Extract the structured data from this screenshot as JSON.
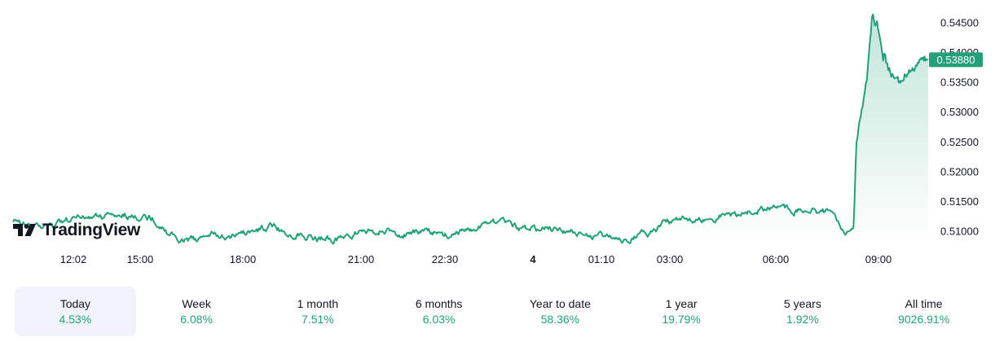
{
  "brand": {
    "name": "TradingView",
    "icon": "tradingview-logo-icon"
  },
  "colors": {
    "line": "#22a079",
    "fill_top": "#22a079",
    "last_price_label_bg": "#22a079",
    "positive": "#22a079",
    "active_tab_bg": "#f0f3fa"
  },
  "chart_data": {
    "type": "area",
    "x_tick_labels": [
      "12:02",
      "15:00",
      "18:00",
      "21:00",
      "22:30",
      "4",
      "01:10",
      "03:00",
      "06:00",
      "09:00"
    ],
    "y_tick_labels": [
      "0.54500",
      "0.54000",
      "0.53500",
      "0.53000",
      "0.52500",
      "0.52000",
      "0.51500",
      "0.51000"
    ],
    "ylim": [
      0.5078,
      0.5472
    ],
    "last_value": "0.53880",
    "grid": false,
    "key_points": [
      {
        "t": 0.0,
        "y": 0.5119
      },
      {
        "t": 0.015,
        "y": 0.5112
      },
      {
        "t": 0.035,
        "y": 0.5105
      },
      {
        "t": 0.06,
        "y": 0.5115
      },
      {
        "t": 0.08,
        "y": 0.5125
      },
      {
        "t": 0.1,
        "y": 0.5125
      },
      {
        "t": 0.12,
        "y": 0.513
      },
      {
        "t": 0.14,
        "y": 0.5123
      },
      {
        "t": 0.15,
        "y": 0.5125
      },
      {
        "t": 0.16,
        "y": 0.512
      },
      {
        "t": 0.175,
        "y": 0.51
      },
      {
        "t": 0.19,
        "y": 0.5085
      },
      {
        "t": 0.21,
        "y": 0.5085
      },
      {
        "t": 0.225,
        "y": 0.5095
      },
      {
        "t": 0.245,
        "y": 0.509
      },
      {
        "t": 0.263,
        "y": 0.5095
      },
      {
        "t": 0.282,
        "y": 0.5105
      },
      {
        "t": 0.295,
        "y": 0.5108
      },
      {
        "t": 0.31,
        "y": 0.5097
      },
      {
        "t": 0.33,
        "y": 0.5095
      },
      {
        "t": 0.345,
        "y": 0.5088
      },
      {
        "t": 0.37,
        "y": 0.5085
      },
      {
        "t": 0.395,
        "y": 0.51
      },
      {
        "t": 0.42,
        "y": 0.51
      },
      {
        "t": 0.44,
        "y": 0.5095
      },
      {
        "t": 0.465,
        "y": 0.5098
      },
      {
        "t": 0.49,
        "y": 0.5095
      },
      {
        "t": 0.51,
        "y": 0.51
      },
      {
        "t": 0.535,
        "y": 0.5105
      },
      {
        "t": 0.55,
        "y": 0.5115
      },
      {
        "t": 0.565,
        "y": 0.5108
      },
      {
        "t": 0.585,
        "y": 0.51
      },
      {
        "t": 0.605,
        "y": 0.5105
      },
      {
        "t": 0.625,
        "y": 0.51
      },
      {
        "t": 0.645,
        "y": 0.5097
      },
      {
        "t": 0.66,
        "y": 0.509
      },
      {
        "t": 0.678,
        "y": 0.5092
      },
      {
        "t": 0.693,
        "y": 0.5085
      },
      {
        "t": 0.71,
        "y": 0.5095
      },
      {
        "t": 0.725,
        "y": 0.5097
      },
      {
        "t": 0.74,
        "y": 0.5115
      },
      {
        "t": 0.76,
        "y": 0.5118
      },
      {
        "t": 0.78,
        "y": 0.512
      },
      {
        "t": 0.8,
        "y": 0.5125
      },
      {
        "t": 0.82,
        "y": 0.5128
      },
      {
        "t": 0.84,
        "y": 0.5133
      },
      {
        "t": 0.86,
        "y": 0.514
      },
      {
        "t": 0.88,
        "y": 0.5138
      },
      {
        "t": 0.9,
        "y": 0.5135
      },
      {
        "t": 0.92,
        "y": 0.5133
      },
      {
        "t": 0.93,
        "y": 0.513
      },
      {
        "t": 0.935,
        "y": 0.5115
      },
      {
        "t": 0.942,
        "y": 0.5105
      },
      {
        "t": 0.948,
        "y": 0.51
      },
      {
        "t": 0.955,
        "y": 0.511
      },
      {
        "t": 0.958,
        "y": 0.525
      },
      {
        "t": 0.962,
        "y": 0.529
      },
      {
        "t": 0.966,
        "y": 0.533
      },
      {
        "t": 0.97,
        "y": 0.536
      },
      {
        "t": 0.973,
        "y": 0.542
      },
      {
        "t": 0.976,
        "y": 0.5465
      },
      {
        "t": 0.979,
        "y": 0.5445
      },
      {
        "t": 0.982,
        "y": 0.5455
      },
      {
        "t": 0.985,
        "y": 0.542
      },
      {
        "t": 0.988,
        "y": 0.5395
      },
      {
        "t": 0.991,
        "y": 0.5405
      },
      {
        "t": 0.994,
        "y": 0.5375
      },
      {
        "t": 0.997,
        "y": 0.536
      },
      {
        "t": 1.0,
        "y": 0.5355
      }
    ],
    "tail_points": [
      {
        "t": 0.0,
        "y": 0.536
      },
      {
        "t": 0.2,
        "y": 0.5352
      },
      {
        "t": 0.4,
        "y": 0.5365
      },
      {
        "t": 0.6,
        "y": 0.5372
      },
      {
        "t": 0.8,
        "y": 0.5392
      },
      {
        "t": 1.0,
        "y": 0.5388
      }
    ]
  },
  "periods": [
    {
      "label": "Today",
      "value": "4.53%",
      "active": true
    },
    {
      "label": "Week",
      "value": "6.08%",
      "active": false
    },
    {
      "label": "1 month",
      "value": "7.51%",
      "active": false
    },
    {
      "label": "6 months",
      "value": "6.03%",
      "active": false
    },
    {
      "label": "Year to date",
      "value": "58.36%",
      "active": false
    },
    {
      "label": "1 year",
      "value": "19.79%",
      "active": false
    },
    {
      "label": "5 years",
      "value": "1.92%",
      "active": false
    },
    {
      "label": "All time",
      "value": "9026.91%",
      "active": false
    }
  ]
}
